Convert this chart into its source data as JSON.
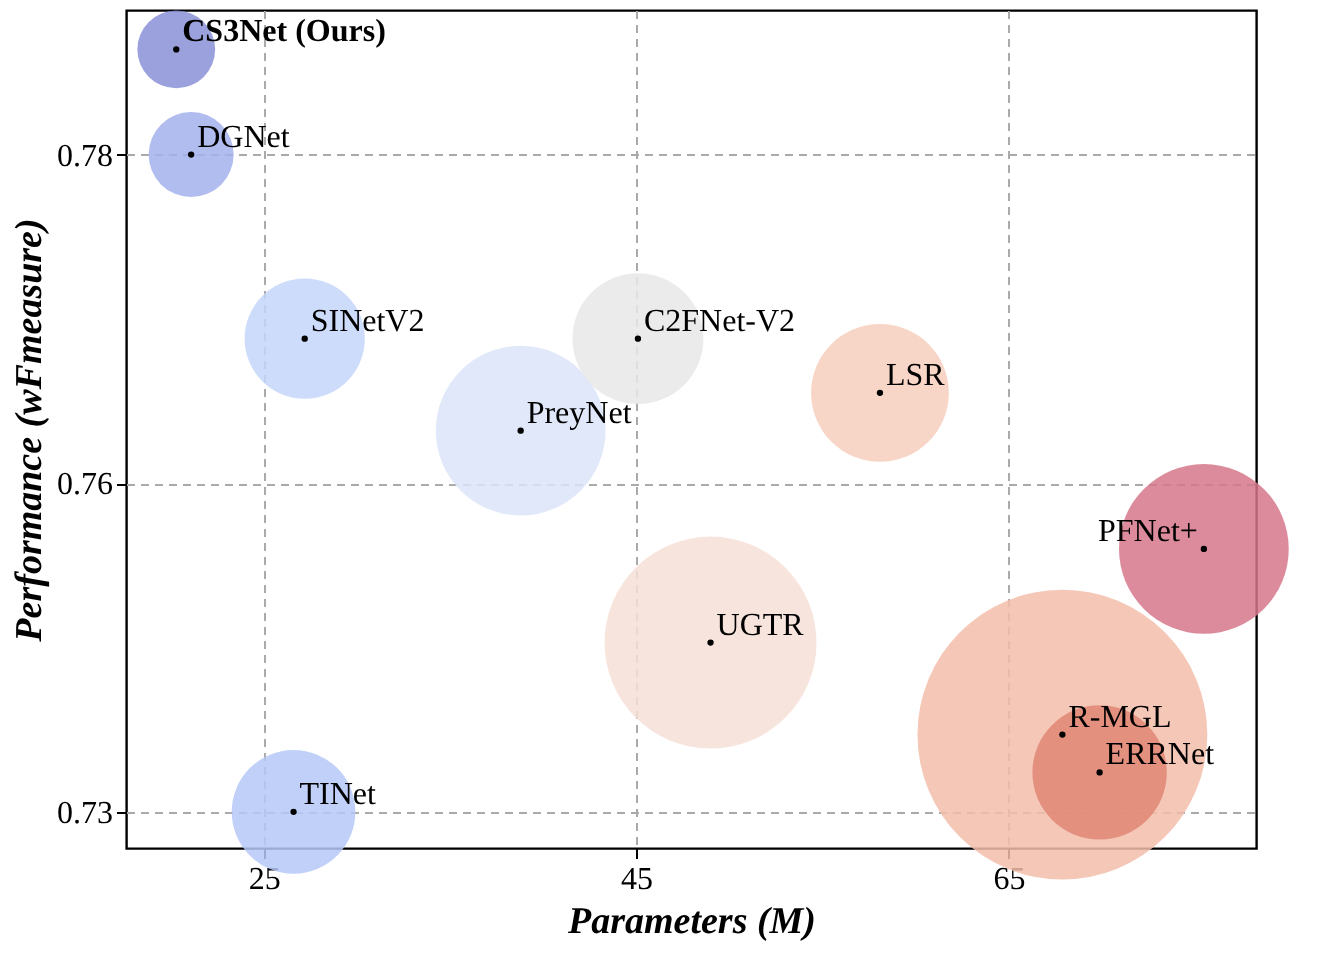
{
  "chart_data": {
    "type": "bubble",
    "xlabel": "Parameters (M)",
    "ylabel": "Performance (wFmeasure)",
    "xlim": [
      17.6,
      78.3
    ],
    "xticks": [
      25,
      45,
      65
    ],
    "ylim": [
      0.7328,
      0.7838
    ],
    "yticks": [
      {
        "value": 0.735,
        "label": "0.73"
      },
      {
        "value": 0.755,
        "label": "0.76"
      },
      {
        "value": 0.775,
        "label": "0.78"
      }
    ],
    "grid": true,
    "legend": false,
    "series": [
      {
        "name": "CS3Net (Ours)",
        "color": "#8890d6",
        "x": [
          20.3
        ],
        "values": [
          0.7814
        ],
        "sizes": [
          0.072
        ]
      },
      {
        "name": "DGNet",
        "color": "#a3b0ec",
        "x": [
          21.1
        ],
        "values": [
          0.775
        ],
        "sizes": [
          0.086
        ]
      },
      {
        "name": "SINetV2",
        "color": "#c6d6fa",
        "x": [
          27.2
        ],
        "values": [
          0.7638
        ],
        "sizes": [
          0.172
        ]
      },
      {
        "name": "PreyNet",
        "color": "#dbe4f8",
        "x": [
          38.8
        ],
        "values": [
          0.7582
        ],
        "sizes": [
          0.343
        ]
      },
      {
        "name": "C2FNet-V2",
        "color": "#e8e8e8",
        "x": [
          45.1
        ],
        "values": [
          0.7638
        ],
        "sizes": [
          0.204
        ]
      },
      {
        "name": "LSR",
        "color": "#f7cfbd",
        "x": [
          58.1
        ],
        "values": [
          0.7605
        ],
        "sizes": [
          0.226
        ]
      },
      {
        "name": "PFNet+",
        "color": "#d6778b",
        "x": [
          75.5
        ],
        "values": [
          0.751
        ],
        "sizes": [
          0.343
        ]
      },
      {
        "name": "UGTR",
        "color": "#f6e0d7",
        "x": [
          49.0
        ],
        "values": [
          0.7453
        ],
        "sizes": [
          0.535
        ]
      },
      {
        "name": "R-MGL",
        "color": "#f3bdaa",
        "x": [
          67.9
        ],
        "values": [
          0.7397
        ],
        "sizes": [
          1.0
        ]
      },
      {
        "name": "ERRNet",
        "color": "#e08676",
        "x": [
          69.9
        ],
        "values": [
          0.7374
        ],
        "sizes": [
          0.215
        ]
      },
      {
        "name": "TINet",
        "color": "#b6c8f8",
        "x": [
          26.6
        ],
        "values": [
          0.735
        ],
        "sizes": [
          0.182
        ]
      }
    ]
  }
}
